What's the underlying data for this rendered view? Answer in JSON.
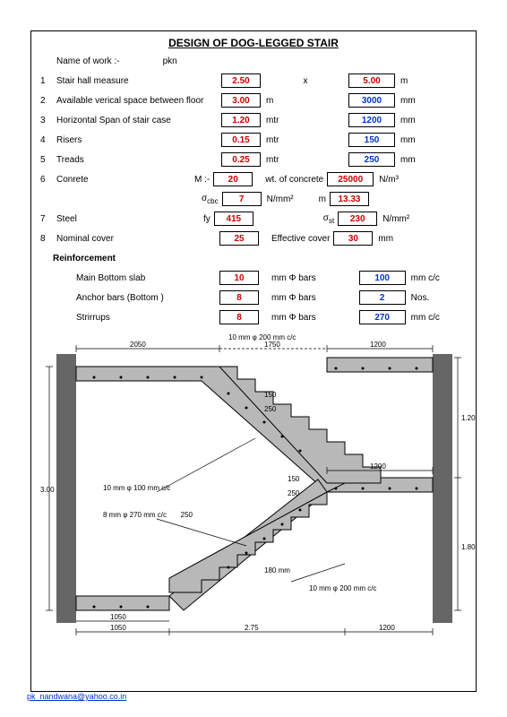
{
  "title": "DESIGN  OF  DOG-LEGGED  STAIR",
  "name_label": "Name of work :-",
  "name_value": "pkn",
  "rows": [
    {
      "n": "1",
      "label": "Stair hall measure",
      "v1": "2.50",
      "u1": "",
      "mid": "x",
      "v2": "5.00",
      "u2": "m",
      "c1": "red",
      "c2": "red"
    },
    {
      "n": "2",
      "label": "Available verical space between floor",
      "v1": "3.00",
      "u1": "m",
      "mid": "",
      "v2": "3000",
      "u2": "mm",
      "c1": "red",
      "c2": "blue"
    },
    {
      "n": "3",
      "label": "Horizontal Span of stair case",
      "v1": "1.20",
      "u1": "mtr",
      "mid": "",
      "v2": "1200",
      "u2": "mm",
      "c1": "red",
      "c2": "blue"
    },
    {
      "n": "4",
      "label": "Risers",
      "v1": "0.15",
      "u1": "mtr",
      "mid": "",
      "v2": "150",
      "u2": "mm",
      "c1": "red",
      "c2": "blue"
    },
    {
      "n": "5",
      "label": "Treads",
      "v1": "0.25",
      "u1": "mtr",
      "mid": "",
      "v2": "250",
      "u2": "mm",
      "c1": "red",
      "c2": "blue"
    }
  ],
  "concrete": {
    "n": "6",
    "label": "Conrete",
    "mlabel": "M :-",
    "m": "20",
    "wt_label": "wt. of concrete",
    "wt": "25000",
    "wt_u": "N/m³",
    "sigma_cbc_label": "σ",
    "sigma_cbc_sub": "cbc",
    "sigma_cbc": "7",
    "sigma_cbc_u": "N/mm²",
    "mval_label": "m",
    "mval": "13.33"
  },
  "steel": {
    "n": "7",
    "label": "Steel",
    "fy_label": "fy",
    "fy": "415",
    "sigma_st_label": "σ",
    "sigma_st_sub": "st",
    "sigma_st": "230",
    "sigma_st_u": "N/mm²"
  },
  "cover": {
    "n": "8",
    "label": "Nominal cover",
    "v1": "25",
    "eff_label": "Effective cover",
    "v2": "30",
    "u": "mm"
  },
  "reinf_title": "Reinforcement",
  "reinf": [
    {
      "label": "Main Bottom slab",
      "v1": "10",
      "mid": "mm  Φ  bars",
      "v2": "100",
      "u2": "mm c/c",
      "c2": "blue"
    },
    {
      "label": "Anchor bars (Bottom )",
      "v1": "8",
      "mid": "mm  Φ  bars",
      "v2": "2",
      "u2": "Nos.",
      "c2": "blue"
    },
    {
      "label": "Strirrups",
      "v1": "8",
      "mid": "mm  Φ  bars",
      "v2": "270",
      "u2": "mm c/c",
      "c2": "blue"
    }
  ],
  "link": "pk_nandwana@yahoo.co.in",
  "diagram": {
    "bg": "#ffffff",
    "stair_fill": "#b8b8b8",
    "wall_fill": "#666666",
    "line": "#000000",
    "dims": {
      "top_bar": "10 mm φ    200   mm c/c",
      "top_left": "2050",
      "top_mid": "1750",
      "top_right": "1200",
      "h1": "1.20",
      "h2": "1.80",
      "h_left": "3.00",
      "step_h": "150",
      "step_w": "250",
      "mid_bar": "10 mm φ    100   mm c/c",
      "stir": "8 mm φ   270   mm c/c",
      "s250": "250",
      "s150": "150",
      "s1200": "1200",
      "s180": "180   mm",
      "bot_bar": "10 mm φ    200    mm c/c",
      "bot_left": "1050",
      "bot_left2": "1050",
      "bot_mid": "2.75",
      "bot_right": "1200"
    }
  }
}
